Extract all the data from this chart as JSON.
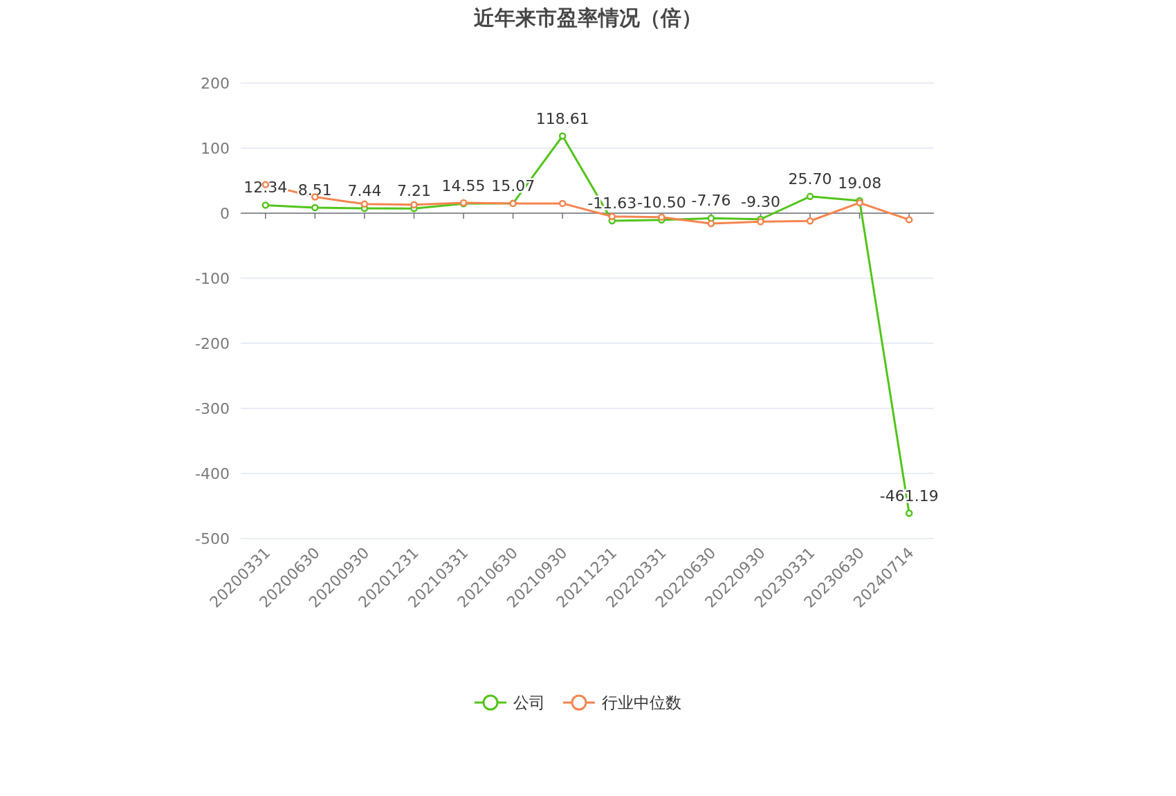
{
  "chart_data": {
    "type": "line",
    "title": "近年来市盈率情况（倍）",
    "categories": [
      "20200331",
      "20200630",
      "20200930",
      "20201231",
      "20210331",
      "20210630",
      "20210930",
      "20211231",
      "20220331",
      "20220630",
      "20220930",
      "20230331",
      "20230630",
      "20240714"
    ],
    "series": [
      {
        "name": "公司",
        "color": "#52c41a",
        "values": [
          12.34,
          8.51,
          7.44,
          7.21,
          14.55,
          15.07,
          118.61,
          -11.63,
          -10.5,
          -7.76,
          -9.3,
          25.7,
          19.08,
          -461.19
        ],
        "value_labels": [
          "12.34",
          "8.51",
          "7.44",
          "7.21",
          "14.55",
          "15.07",
          "118.61",
          "-11.63",
          "-10.50",
          "-7.76",
          "-9.30",
          "25.70",
          "19.08",
          "-461.19"
        ]
      },
      {
        "name": "行业中位数",
        "color": "#f5844f",
        "values": [
          44,
          25,
          14,
          13,
          16,
          15,
          15,
          -5,
          -6,
          -16,
          -13,
          -12,
          16,
          -10
        ]
      }
    ],
    "ylim": [
      -500,
      200
    ],
    "yticks": [
      -500,
      -400,
      -300,
      -200,
      -100,
      0,
      100,
      200
    ],
    "grid": "y",
    "legend": "bottom",
    "marker": "circle",
    "line_style": "solid"
  }
}
